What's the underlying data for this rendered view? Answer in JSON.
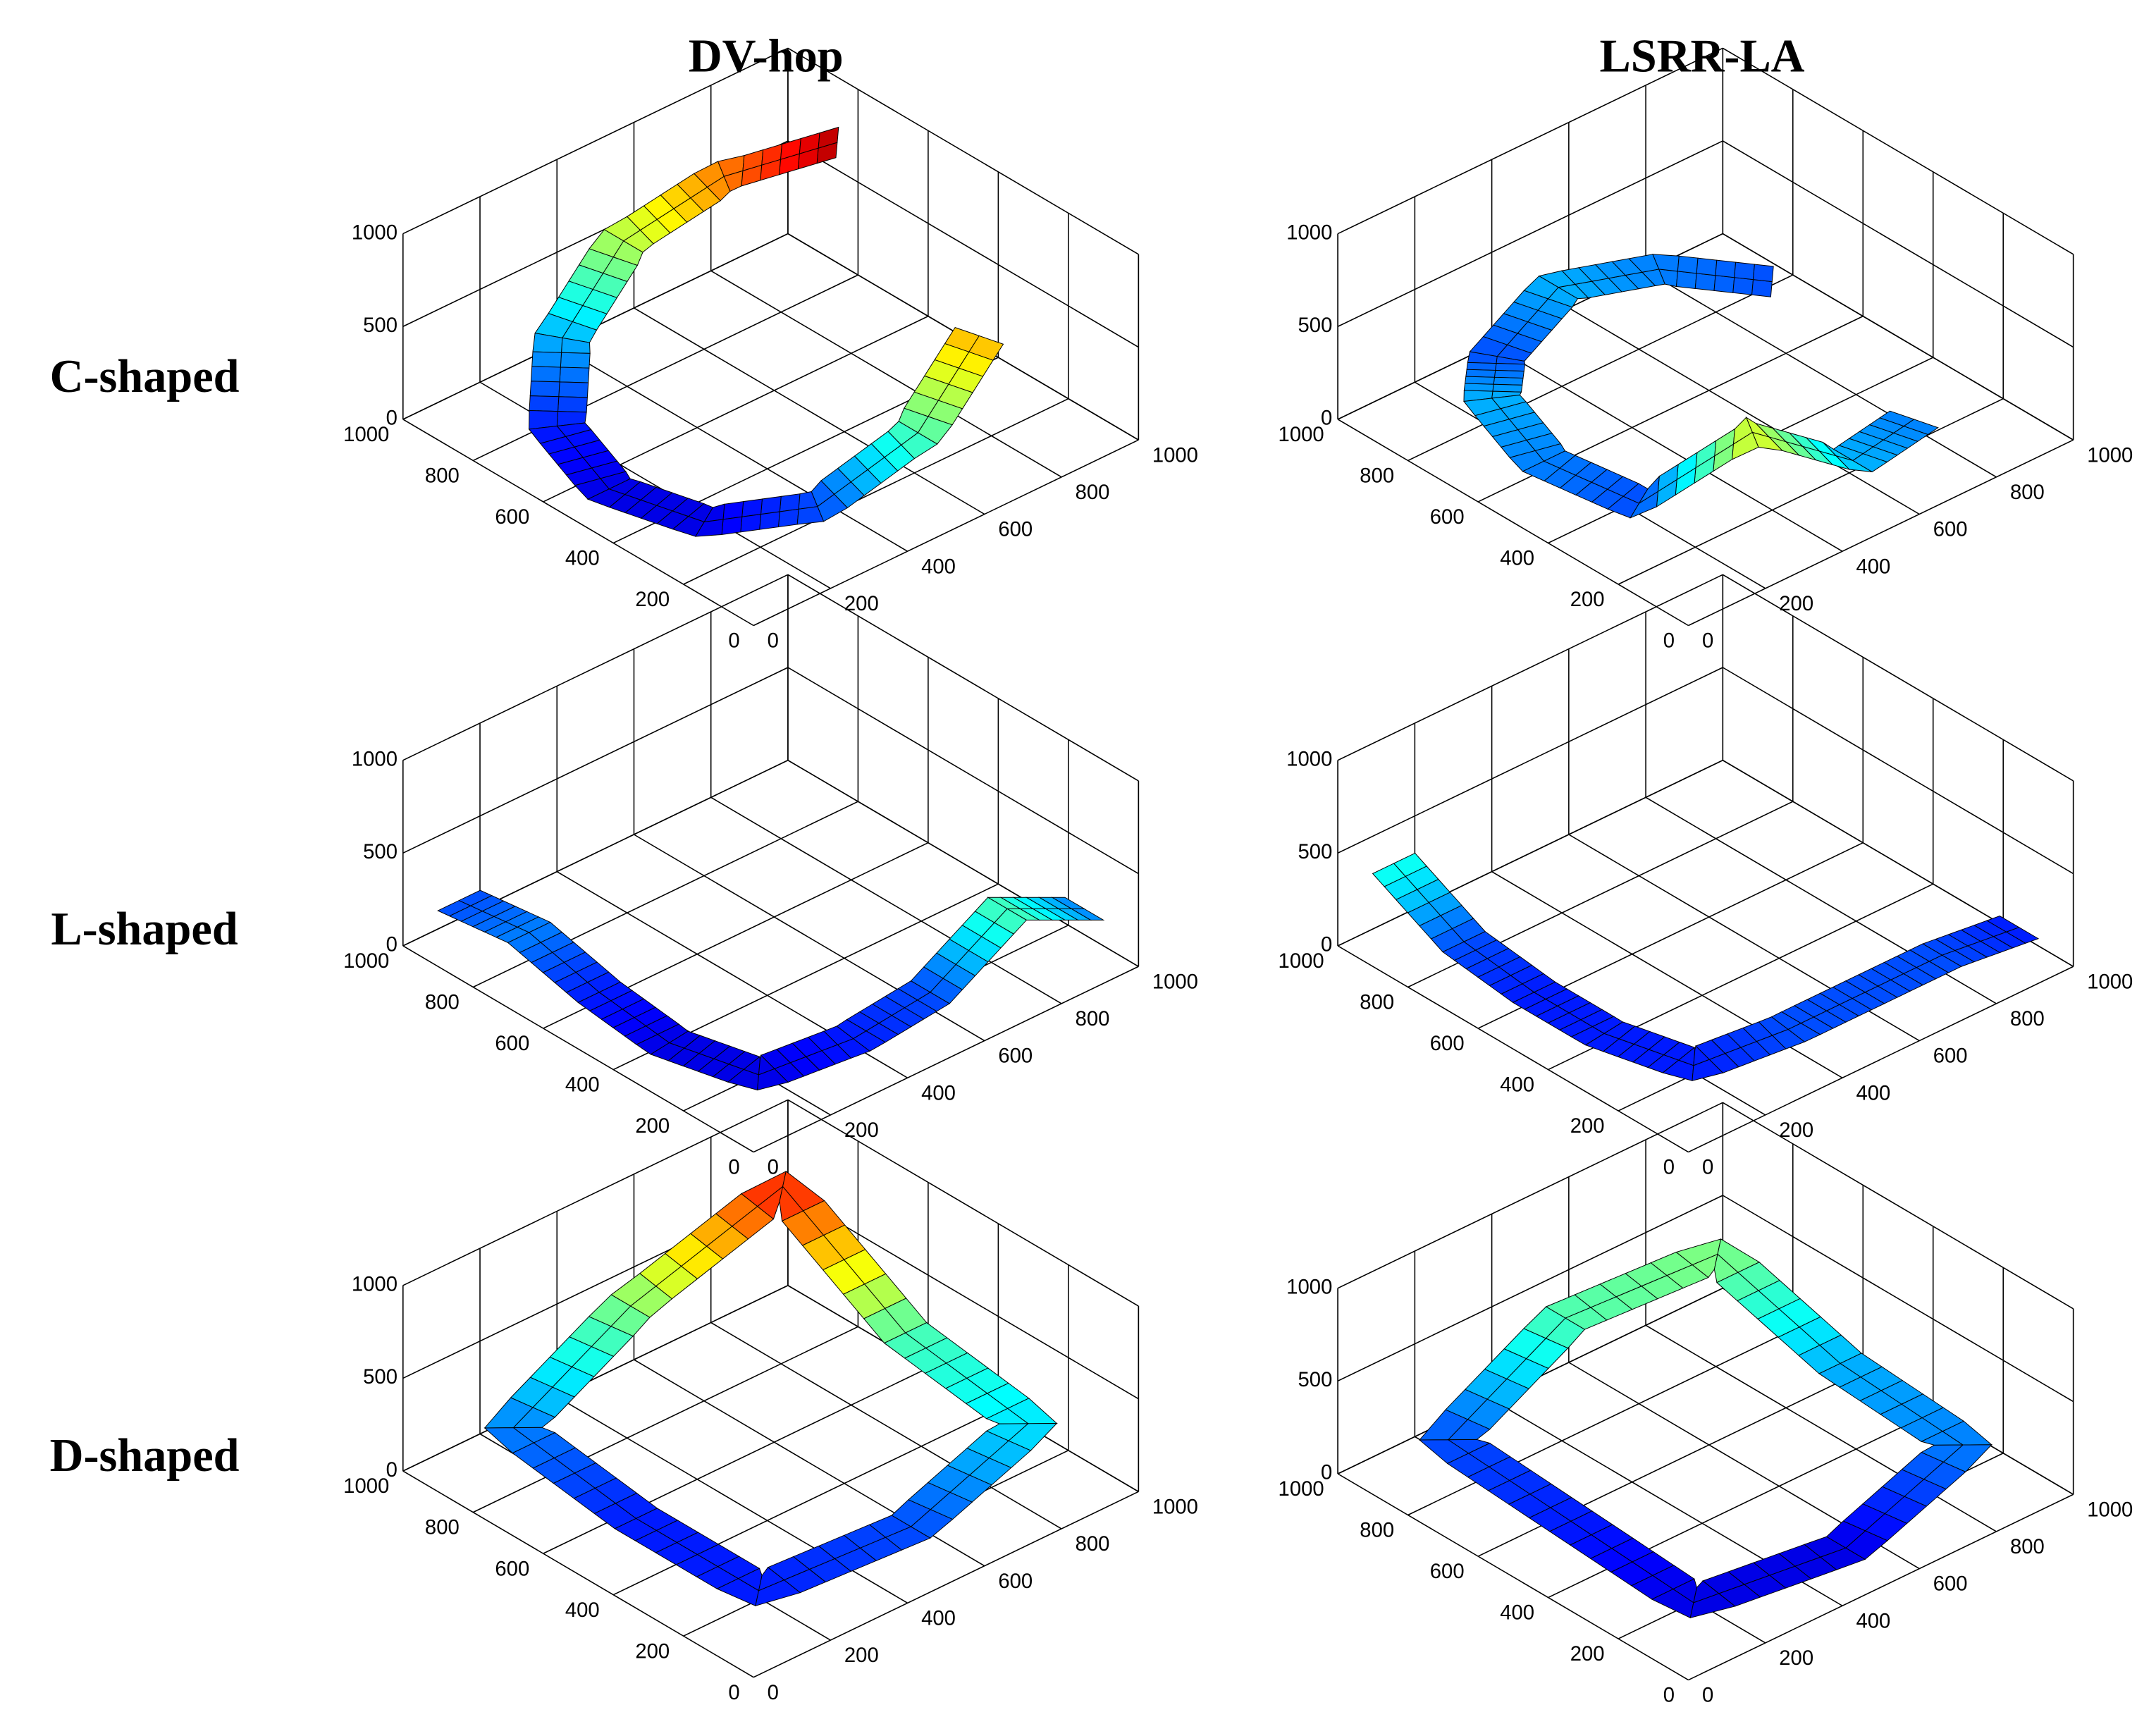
{
  "column_titles": [
    "DV-hop",
    "LSRR-LA"
  ],
  "row_labels": [
    "C-shaped",
    "L-shaped",
    "D-shaped"
  ],
  "chart_data": [
    {
      "type": "surface",
      "xlim": [
        0,
        1000
      ],
      "ylim": [
        0,
        1000
      ],
      "zlim": [
        0,
        1000
      ],
      "xticks": [
        0,
        200,
        400,
        600,
        800,
        1000
      ],
      "yticks": [
        0,
        200,
        400,
        600,
        800,
        1000
      ],
      "zticks": [
        0,
        500,
        1000
      ],
      "x": [
        710,
        500,
        290,
        136,
        80,
        136,
        290,
        500,
        710,
        864
      ],
      "y": [
        136,
        80,
        136,
        290,
        500,
        710,
        864,
        920,
        864,
        710
      ],
      "z": [
        700,
        450,
        200,
        100,
        100,
        150,
        300,
        550,
        750,
        950
      ],
      "closed": false
    },
    {
      "type": "surface",
      "xlim": [
        0,
        1000
      ],
      "ylim": [
        0,
        1000
      ],
      "zlim": [
        0,
        1000
      ],
      "xticks": [
        0,
        200,
        400,
        600,
        800,
        1000
      ],
      "yticks": [
        0,
        200,
        400,
        600,
        800,
        1000
      ],
      "zticks": [
        0,
        500,
        1000
      ],
      "x": [
        710,
        500,
        290,
        136,
        80,
        136,
        290,
        500,
        710,
        864
      ],
      "y": [
        136,
        80,
        136,
        290,
        500,
        710,
        864,
        920,
        864,
        710
      ],
      "z": [
        250,
        300,
        600,
        200,
        250,
        300,
        200,
        300,
        250,
        200
      ],
      "closed": false
    },
    {
      "type": "surface",
      "xlim": [
        0,
        1000
      ],
      "ylim": [
        0,
        1000
      ],
      "zlim": [
        0,
        1000
      ],
      "xticks": [
        0,
        200,
        400,
        600,
        800,
        1000
      ],
      "yticks": [
        0,
        200,
        400,
        600,
        800,
        1000
      ],
      "zticks": [
        0,
        500,
        1000
      ],
      "x": [
        100,
        100,
        100,
        100,
        150,
        350,
        550,
        750,
        950
      ],
      "y": [
        950,
        750,
        550,
        350,
        150,
        100,
        100,
        100,
        100
      ],
      "z": [
        200,
        250,
        150,
        100,
        100,
        150,
        200,
        450,
        250
      ],
      "closed": false
    },
    {
      "type": "surface",
      "xlim": [
        0,
        1000
      ],
      "ylim": [
        0,
        1000
      ],
      "zlim": [
        0,
        1000
      ],
      "xticks": [
        0,
        200,
        400,
        600,
        800,
        1000
      ],
      "yticks": [
        0,
        200,
        400,
        600,
        800,
        1000
      ],
      "zticks": [
        0,
        500,
        1000
      ],
      "x": [
        100,
        100,
        100,
        100,
        150,
        350,
        550,
        750,
        950
      ],
      "y": [
        950,
        750,
        550,
        350,
        150,
        100,
        100,
        100,
        100
      ],
      "z": [
        400,
        200,
        150,
        150,
        150,
        200,
        200,
        200,
        150
      ],
      "closed": false
    },
    {
      "type": "surface",
      "xlim": [
        0,
        1000
      ],
      "ylim": [
        0,
        1000
      ],
      "zlim": [
        0,
        1000
      ],
      "xticks": [
        0,
        200,
        400,
        600,
        800,
        1000
      ],
      "yticks": [
        0,
        200,
        400,
        600,
        800,
        1000
      ],
      "zticks": [
        0,
        500,
        1000
      ],
      "x": [
        150,
        150,
        150,
        500,
        850,
        850,
        850,
        500
      ],
      "y": [
        150,
        500,
        850,
        900,
        850,
        500,
        150,
        100
      ],
      "z": [
        150,
        150,
        250,
        500,
        850,
        450,
        350,
        200
      ],
      "closed": true
    },
    {
      "type": "surface",
      "xlim": [
        0,
        1000
      ],
      "ylim": [
        0,
        1000
      ],
      "zlim": [
        0,
        1000
      ],
      "xticks": [
        0,
        200,
        400,
        600,
        800,
        1000
      ],
      "yticks": [
        0,
        200,
        400,
        600,
        800,
        1000
      ],
      "zticks": [
        0,
        500,
        1000
      ],
      "x": [
        150,
        150,
        150,
        500,
        850,
        850,
        850,
        500
      ],
      "y": [
        150,
        500,
        850,
        900,
        850,
        500,
        150,
        100
      ],
      "z": [
        100,
        150,
        200,
        450,
        500,
        300,
        250,
        100
      ],
      "closed": true
    }
  ]
}
